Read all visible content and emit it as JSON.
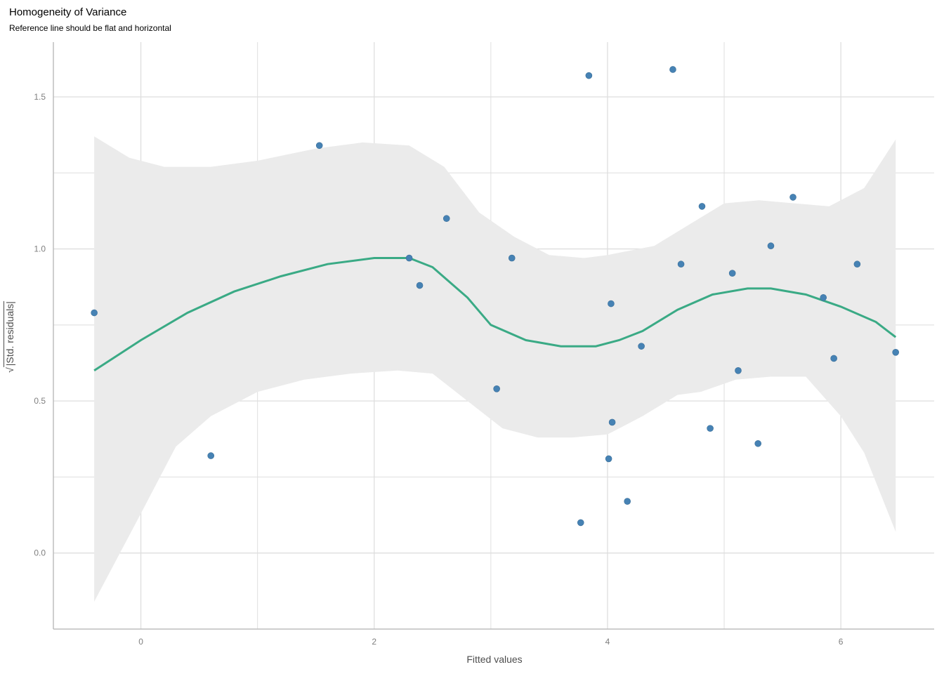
{
  "chart_data": {
    "type": "scatter",
    "title": "Homogeneity of Variance",
    "subtitle": "Reference line should be flat and horizontal",
    "xlabel": "Fitted values",
    "ylabel": "|Std. residuals|",
    "ylabel_prefix": "√",
    "xlim": [
      -0.75,
      6.8
    ],
    "ylim": [
      -0.25,
      1.68
    ],
    "x_ticks": [
      0,
      2,
      4,
      6
    ],
    "y_ticks": [
      0.0,
      0.5,
      1.0,
      1.5
    ],
    "x_tick_labels": [
      "0",
      "2",
      "4",
      "6"
    ],
    "y_tick_labels": [
      "0.0",
      "0.5",
      "1.0",
      "1.5"
    ],
    "grid": true,
    "colors": {
      "points": "#4682b4",
      "line": "#3aaa85",
      "ribbon": "#ebebeb",
      "grid": "#dedede"
    },
    "series": [
      {
        "type": "scatter",
        "points": [
          [
            -0.4,
            0.79
          ],
          [
            0.6,
            0.32
          ],
          [
            1.53,
            1.34
          ],
          [
            2.3,
            0.97
          ],
          [
            2.39,
            0.88
          ],
          [
            2.62,
            1.1
          ],
          [
            3.05,
            0.54
          ],
          [
            3.18,
            0.97
          ],
          [
            3.77,
            0.1
          ],
          [
            3.84,
            1.57
          ],
          [
            4.01,
            0.31
          ],
          [
            4.03,
            0.82
          ],
          [
            4.04,
            0.43
          ],
          [
            4.17,
            0.17
          ],
          [
            4.29,
            0.68
          ],
          [
            4.56,
            1.59
          ],
          [
            4.63,
            0.95
          ],
          [
            4.81,
            1.14
          ],
          [
            4.88,
            0.41
          ],
          [
            5.07,
            0.92
          ],
          [
            5.12,
            0.6
          ],
          [
            5.29,
            0.36
          ],
          [
            5.4,
            1.01
          ],
          [
            5.59,
            1.17
          ],
          [
            5.85,
            0.84
          ],
          [
            5.94,
            0.64
          ],
          [
            6.14,
            0.95
          ],
          [
            6.47,
            0.66
          ]
        ]
      },
      {
        "type": "line",
        "points": [
          [
            -0.4,
            0.6
          ],
          [
            0.0,
            0.7
          ],
          [
            0.4,
            0.79
          ],
          [
            0.8,
            0.86
          ],
          [
            1.2,
            0.91
          ],
          [
            1.6,
            0.95
          ],
          [
            2.0,
            0.97
          ],
          [
            2.3,
            0.97
          ],
          [
            2.5,
            0.94
          ],
          [
            2.8,
            0.84
          ],
          [
            3.0,
            0.75
          ],
          [
            3.3,
            0.7
          ],
          [
            3.6,
            0.68
          ],
          [
            3.9,
            0.68
          ],
          [
            4.1,
            0.7
          ],
          [
            4.3,
            0.73
          ],
          [
            4.6,
            0.8
          ],
          [
            4.9,
            0.85
          ],
          [
            5.2,
            0.87
          ],
          [
            5.4,
            0.87
          ],
          [
            5.7,
            0.85
          ],
          [
            6.0,
            0.81
          ],
          [
            6.3,
            0.76
          ],
          [
            6.47,
            0.71
          ]
        ]
      },
      {
        "type": "area",
        "upper": [
          [
            -0.4,
            1.37
          ],
          [
            -0.1,
            1.3
          ],
          [
            0.2,
            1.27
          ],
          [
            0.6,
            1.27
          ],
          [
            1.0,
            1.29
          ],
          [
            1.5,
            1.33
          ],
          [
            1.9,
            1.35
          ],
          [
            2.3,
            1.34
          ],
          [
            2.6,
            1.27
          ],
          [
            2.9,
            1.12
          ],
          [
            3.2,
            1.04
          ],
          [
            3.5,
            0.98
          ],
          [
            3.8,
            0.97
          ],
          [
            4.0,
            0.98
          ],
          [
            4.4,
            1.01
          ],
          [
            4.7,
            1.08
          ],
          [
            5.0,
            1.15
          ],
          [
            5.3,
            1.16
          ],
          [
            5.6,
            1.15
          ],
          [
            5.9,
            1.14
          ],
          [
            6.2,
            1.2
          ],
          [
            6.47,
            1.36
          ]
        ],
        "lower": [
          [
            6.47,
            0.07
          ],
          [
            6.2,
            0.33
          ],
          [
            6.0,
            0.45
          ],
          [
            5.7,
            0.58
          ],
          [
            5.4,
            0.58
          ],
          [
            5.1,
            0.57
          ],
          [
            4.8,
            0.53
          ],
          [
            4.6,
            0.52
          ],
          [
            4.3,
            0.45
          ],
          [
            4.0,
            0.39
          ],
          [
            3.7,
            0.38
          ],
          [
            3.4,
            0.38
          ],
          [
            3.1,
            0.41
          ],
          [
            2.8,
            0.5
          ],
          [
            2.5,
            0.59
          ],
          [
            2.2,
            0.6
          ],
          [
            1.8,
            0.59
          ],
          [
            1.4,
            0.57
          ],
          [
            1.0,
            0.53
          ],
          [
            0.6,
            0.45
          ],
          [
            0.3,
            0.35
          ],
          [
            0.0,
            0.13
          ],
          [
            -0.4,
            -0.16
          ]
        ]
      }
    ]
  }
}
